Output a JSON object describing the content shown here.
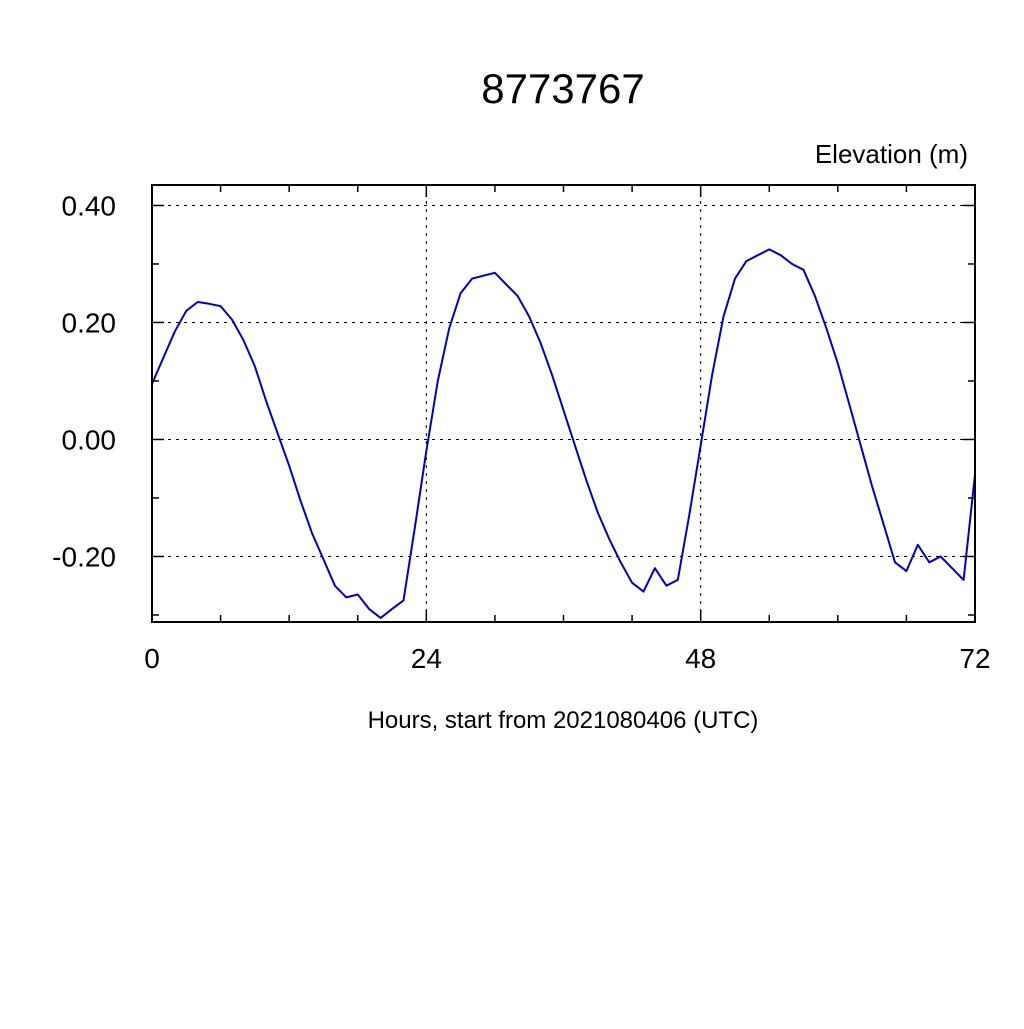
{
  "chart_data": {
    "type": "line",
    "title": "8773767",
    "xlabel": "Hours, start from 2021080406 (UTC)",
    "ylabel": "Elevation (m)",
    "line_color": "#0000cd",
    "grid_color": "#000000",
    "axis_color": "#000000",
    "grid": true,
    "legend": false,
    "xlim": [
      0,
      72
    ],
    "ylim": [
      -0.312,
      0.435
    ],
    "x_ticks": [
      0,
      24,
      48,
      72
    ],
    "x_tick_labels": [
      "0",
      "24",
      "48",
      "72"
    ],
    "x_minor_step": 6,
    "y_ticks": [
      -0.2,
      0.0,
      0.2,
      0.4
    ],
    "y_tick_labels": [
      "-0.20",
      "0.00",
      "0.20",
      "0.40"
    ],
    "y_minor_step": 0.1,
    "x_grid": [
      24,
      48
    ],
    "y_grid": [
      -0.2,
      0.0,
      0.2,
      0.4
    ],
    "x": [
      0,
      1,
      2,
      3,
      4,
      5,
      6,
      7,
      8,
      9,
      10,
      11,
      12,
      13,
      14,
      15,
      16,
      17,
      18,
      19,
      20,
      21,
      22,
      23,
      24,
      25,
      26,
      27,
      28,
      29,
      30,
      31,
      32,
      33,
      34,
      35,
      36,
      37,
      38,
      39,
      40,
      41,
      42,
      43,
      44,
      45,
      46,
      47,
      48,
      49,
      50,
      51,
      52,
      53,
      54,
      55,
      56,
      57,
      58,
      59,
      60,
      61,
      62,
      63,
      64,
      65,
      66,
      67,
      68,
      69,
      70,
      71,
      72
    ],
    "y": [
      0.095,
      0.14,
      0.185,
      0.22,
      0.235,
      0.232,
      0.228,
      0.205,
      0.17,
      0.125,
      0.065,
      0.01,
      -0.045,
      -0.105,
      -0.16,
      -0.205,
      -0.25,
      -0.27,
      -0.265,
      -0.29,
      -0.305,
      -0.29,
      -0.275,
      -0.15,
      -0.02,
      0.1,
      0.19,
      0.25,
      0.275,
      0.28,
      0.285,
      0.265,
      0.245,
      0.21,
      0.165,
      0.11,
      0.05,
      -0.01,
      -0.07,
      -0.125,
      -0.17,
      -0.21,
      -0.245,
      -0.26,
      -0.22,
      -0.25,
      -0.24,
      -0.13,
      -0.01,
      0.11,
      0.21,
      0.275,
      0.305,
      0.315,
      0.325,
      0.315,
      0.3,
      0.29,
      0.245,
      0.19,
      0.13,
      0.06,
      -0.01,
      -0.08,
      -0.145,
      -0.21,
      -0.225,
      -0.18,
      -0.21,
      -0.2,
      -0.22,
      -0.24,
      -0.06
    ]
  }
}
